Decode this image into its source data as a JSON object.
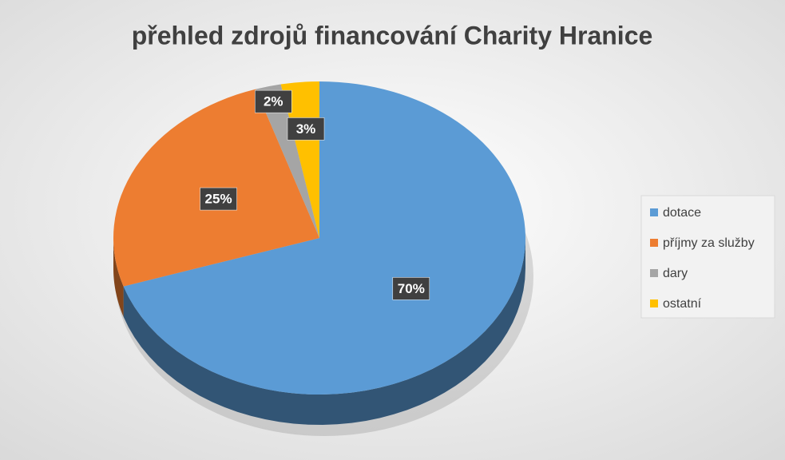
{
  "chart_data": {
    "type": "pie",
    "title": "přehled zdrojů financování Charity Hranice",
    "categories": [
      "dotace",
      "příjmy za služby",
      "dary",
      "ostatní"
    ],
    "values": [
      70,
      25,
      2,
      3
    ],
    "value_labels": [
      "70%",
      "25%",
      "2%",
      "3%"
    ],
    "colors": [
      "#5b9bd5",
      "#ed7d31",
      "#a5a5a5",
      "#ffc000"
    ],
    "legend": "right"
  }
}
